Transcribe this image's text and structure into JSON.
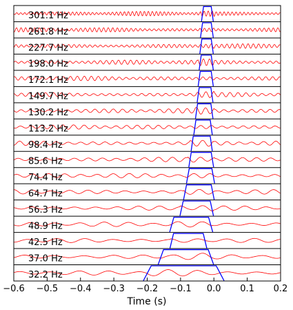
{
  "chart_data": {
    "type": "line",
    "xlabel": "Time (s)",
    "xlim": [
      -0.6,
      0.2
    ],
    "xticks": [
      -0.6,
      -0.5,
      -0.4,
      -0.3,
      -0.2,
      -0.1,
      0.0,
      0.1,
      0.2
    ],
    "xtick_labels": [
      "−0.6",
      "−0.5",
      "−0.4",
      "−0.3",
      "−0.2",
      "−0.1",
      "0.0",
      "0.1",
      "0.2"
    ],
    "grid": false,
    "colors": {
      "signal": "#ff0000",
      "window": "#0000ff",
      "axes": "#000000"
    },
    "series": [
      {
        "name": "301.1 Hz",
        "freq": 301.1,
        "window": [
          -0.031,
          -0.008
        ]
      },
      {
        "name": "261.8 Hz",
        "freq": 261.8,
        "window": [
          -0.034,
          -0.008
        ]
      },
      {
        "name": "227.7 Hz",
        "freq": 227.7,
        "window": [
          -0.036,
          -0.008
        ]
      },
      {
        "name": "198.0 Hz",
        "freq": 198.0,
        "window": [
          -0.038,
          -0.008
        ]
      },
      {
        "name": "172.1 Hz",
        "freq": 172.1,
        "window": [
          -0.041,
          -0.008
        ]
      },
      {
        "name": "149.7 Hz",
        "freq": 149.7,
        "window": [
          -0.044,
          -0.009
        ]
      },
      {
        "name": "130.2 Hz",
        "freq": 130.2,
        "window": [
          -0.049,
          -0.009
        ]
      },
      {
        "name": "113.2 Hz",
        "freq": 113.2,
        "window": [
          -0.054,
          -0.011
        ]
      },
      {
        "name": "98.4 Hz",
        "freq": 98.4,
        "window": [
          -0.062,
          -0.011
        ]
      },
      {
        "name": "85.6 Hz",
        "freq": 85.6,
        "window": [
          -0.068,
          -0.008
        ]
      },
      {
        "name": "74.4 Hz",
        "freq": 74.4,
        "window": [
          -0.074,
          -0.006
        ]
      },
      {
        "name": "64.7 Hz",
        "freq": 64.7,
        "window": [
          -0.082,
          -0.008
        ]
      },
      {
        "name": "56.3 Hz",
        "freq": 56.3,
        "window": [
          -0.092,
          -0.011
        ]
      },
      {
        "name": "48.9 Hz",
        "freq": 48.9,
        "window": [
          -0.12,
          -0.016
        ]
      },
      {
        "name": "42.5 Hz",
        "freq": 42.5,
        "window": [
          -0.121,
          -0.032
        ]
      },
      {
        "name": "37.0 Hz",
        "freq": 37.0,
        "window": [
          -0.151,
          -0.017
        ]
      },
      {
        "name": "32.2 Hz",
        "freq": 32.2,
        "window": [
          -0.188,
          0.007
        ]
      }
    ]
  }
}
